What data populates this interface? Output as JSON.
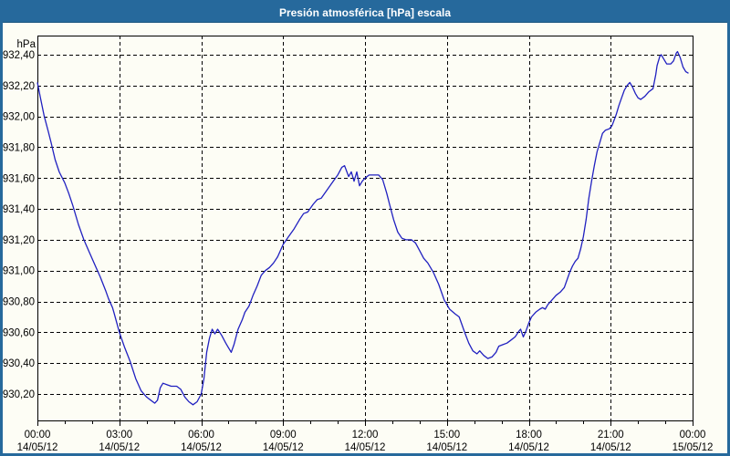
{
  "window": {
    "title": "Presión atmosférica [hPa] escala"
  },
  "colors": {
    "frame_blue": "#26699c",
    "title_text": "#ffffff",
    "plot_background": "#fdfdf5",
    "line_color": "#2020c0",
    "grid_color": "#000000",
    "label_color": "#000000"
  },
  "chart_data": {
    "type": "line",
    "title": "Presión atmosférica [hPa] escala",
    "y_unit_label": "hPa",
    "grid": "dashed",
    "legend": "none",
    "xlim_hours": [
      0,
      24
    ],
    "ylim": [
      930.03,
      932.52
    ],
    "y_ticks": [
      930.2,
      930.4,
      930.6,
      930.8,
      931.0,
      931.2,
      931.4,
      931.6,
      931.8,
      932.0,
      932.2,
      932.4
    ],
    "y_tick_decimal_separator": ",",
    "x_ticks": [
      {
        "t": 0,
        "time": "00:00",
        "date": "14/05/12"
      },
      {
        "t": 3,
        "time": "03:00",
        "date": "14/05/12"
      },
      {
        "t": 6,
        "time": "06:00",
        "date": "14/05/12"
      },
      {
        "t": 9,
        "time": "09:00",
        "date": "14/05/12"
      },
      {
        "t": 12,
        "time": "12:00",
        "date": "14/05/12"
      },
      {
        "t": 15,
        "time": "15:00",
        "date": "14/05/12"
      },
      {
        "t": 18,
        "time": "18:00",
        "date": "14/05/12"
      },
      {
        "t": 21,
        "time": "21:00",
        "date": "14/05/12"
      },
      {
        "t": 24,
        "time": "00:00",
        "date": "15/05/12"
      }
    ],
    "minor_tick_every_hours": 1,
    "series": [
      {
        "color": "#2020c0",
        "points_t_hours_value_hpa": [
          [
            0.0,
            932.22
          ],
          [
            0.1,
            932.13
          ],
          [
            0.25,
            932.0
          ],
          [
            0.4,
            931.9
          ],
          [
            0.5,
            931.83
          ],
          [
            0.65,
            931.72
          ],
          [
            0.8,
            931.64
          ],
          [
            1.0,
            931.57
          ],
          [
            1.15,
            931.5
          ],
          [
            1.3,
            931.42
          ],
          [
            1.5,
            931.3
          ],
          [
            1.7,
            931.2
          ],
          [
            1.9,
            931.12
          ],
          [
            2.1,
            931.04
          ],
          [
            2.3,
            930.96
          ],
          [
            2.5,
            930.87
          ],
          [
            2.6,
            930.82
          ],
          [
            2.75,
            930.76
          ],
          [
            2.8,
            930.73
          ],
          [
            3.0,
            930.6
          ],
          [
            3.2,
            930.5
          ],
          [
            3.4,
            930.41
          ],
          [
            3.6,
            930.3
          ],
          [
            3.8,
            930.22
          ],
          [
            4.0,
            930.18
          ],
          [
            4.15,
            930.16
          ],
          [
            4.3,
            930.14
          ],
          [
            4.4,
            930.16
          ],
          [
            4.5,
            930.24
          ],
          [
            4.6,
            930.27
          ],
          [
            4.75,
            930.26
          ],
          [
            4.9,
            930.25
          ],
          [
            5.1,
            930.25
          ],
          [
            5.25,
            930.23
          ],
          [
            5.4,
            930.18
          ],
          [
            5.55,
            930.15
          ],
          [
            5.7,
            930.13
          ],
          [
            5.85,
            930.15
          ],
          [
            6.0,
            930.2
          ],
          [
            6.1,
            930.3
          ],
          [
            6.2,
            930.47
          ],
          [
            6.3,
            930.56
          ],
          [
            6.4,
            930.62
          ],
          [
            6.5,
            930.59
          ],
          [
            6.6,
            930.62
          ],
          [
            6.75,
            930.58
          ],
          [
            6.9,
            930.53
          ],
          [
            7.0,
            930.5
          ],
          [
            7.1,
            930.47
          ],
          [
            7.2,
            930.52
          ],
          [
            7.35,
            930.62
          ],
          [
            7.5,
            930.68
          ],
          [
            7.6,
            930.73
          ],
          [
            7.75,
            930.77
          ],
          [
            7.9,
            930.84
          ],
          [
            8.05,
            930.9
          ],
          [
            8.2,
            930.97
          ],
          [
            8.35,
            931.0
          ],
          [
            8.5,
            931.02
          ],
          [
            8.65,
            931.05
          ],
          [
            8.8,
            931.09
          ],
          [
            9.0,
            931.17
          ],
          [
            9.2,
            931.22
          ],
          [
            9.4,
            931.27
          ],
          [
            9.6,
            931.33
          ],
          [
            9.75,
            931.37
          ],
          [
            9.9,
            931.38
          ],
          [
            10.1,
            931.43
          ],
          [
            10.25,
            931.46
          ],
          [
            10.4,
            931.47
          ],
          [
            10.6,
            931.52
          ],
          [
            10.8,
            931.57
          ],
          [
            11.0,
            931.62
          ],
          [
            11.15,
            931.67
          ],
          [
            11.25,
            931.68
          ],
          [
            11.4,
            931.61
          ],
          [
            11.5,
            931.64
          ],
          [
            11.6,
            931.58
          ],
          [
            11.7,
            931.64
          ],
          [
            11.8,
            931.55
          ],
          [
            11.9,
            931.58
          ],
          [
            12.0,
            931.6
          ],
          [
            12.15,
            931.62
          ],
          [
            12.35,
            931.62
          ],
          [
            12.5,
            931.62
          ],
          [
            12.65,
            931.59
          ],
          [
            12.8,
            931.5
          ],
          [
            12.9,
            931.43
          ],
          [
            13.05,
            931.33
          ],
          [
            13.2,
            931.25
          ],
          [
            13.35,
            931.21
          ],
          [
            13.5,
            931.2
          ],
          [
            13.7,
            931.2
          ],
          [
            13.85,
            931.18
          ],
          [
            14.0,
            931.13
          ],
          [
            14.15,
            931.08
          ],
          [
            14.3,
            931.05
          ],
          [
            14.5,
            930.99
          ],
          [
            14.7,
            930.91
          ],
          [
            14.9,
            930.81
          ],
          [
            15.1,
            930.75
          ],
          [
            15.3,
            930.72
          ],
          [
            15.45,
            930.7
          ],
          [
            15.55,
            930.65
          ],
          [
            15.65,
            930.6
          ],
          [
            15.8,
            930.53
          ],
          [
            15.95,
            930.48
          ],
          [
            16.1,
            930.46
          ],
          [
            16.2,
            930.48
          ],
          [
            16.35,
            930.45
          ],
          [
            16.5,
            930.43
          ],
          [
            16.65,
            930.44
          ],
          [
            16.8,
            930.47
          ],
          [
            16.9,
            930.51
          ],
          [
            17.05,
            930.52
          ],
          [
            17.2,
            930.53
          ],
          [
            17.35,
            930.55
          ],
          [
            17.5,
            930.57
          ],
          [
            17.65,
            930.61
          ],
          [
            17.7,
            930.62
          ],
          [
            17.8,
            930.57
          ],
          [
            17.9,
            930.61
          ],
          [
            18.0,
            930.66
          ],
          [
            18.1,
            930.7
          ],
          [
            18.25,
            930.73
          ],
          [
            18.4,
            930.75
          ],
          [
            18.5,
            930.76
          ],
          [
            18.6,
            930.75
          ],
          [
            18.7,
            930.78
          ],
          [
            18.85,
            930.81
          ],
          [
            19.0,
            930.84
          ],
          [
            19.15,
            930.86
          ],
          [
            19.3,
            930.89
          ],
          [
            19.4,
            930.94
          ],
          [
            19.5,
            930.99
          ],
          [
            19.6,
            931.03
          ],
          [
            19.7,
            931.06
          ],
          [
            19.8,
            931.08
          ],
          [
            19.9,
            931.14
          ],
          [
            20.0,
            931.22
          ],
          [
            20.1,
            931.33
          ],
          [
            20.2,
            931.47
          ],
          [
            20.3,
            931.58
          ],
          [
            20.4,
            931.68
          ],
          [
            20.5,
            931.77
          ],
          [
            20.6,
            931.83
          ],
          [
            20.7,
            931.89
          ],
          [
            20.8,
            931.91
          ],
          [
            20.95,
            931.92
          ],
          [
            21.05,
            931.94
          ],
          [
            21.2,
            932.01
          ],
          [
            21.3,
            932.07
          ],
          [
            21.4,
            932.12
          ],
          [
            21.5,
            932.17
          ],
          [
            21.6,
            932.2
          ],
          [
            21.7,
            932.22
          ],
          [
            21.8,
            932.19
          ],
          [
            21.9,
            932.15
          ],
          [
            22.0,
            932.12
          ],
          [
            22.1,
            932.11
          ],
          [
            22.25,
            932.13
          ],
          [
            22.4,
            932.16
          ],
          [
            22.55,
            932.18
          ],
          [
            22.65,
            932.27
          ],
          [
            22.7,
            932.33
          ],
          [
            22.8,
            932.39
          ],
          [
            22.85,
            932.4
          ],
          [
            22.95,
            932.37
          ],
          [
            23.05,
            932.34
          ],
          [
            23.2,
            932.34
          ],
          [
            23.3,
            932.36
          ],
          [
            23.4,
            932.41
          ],
          [
            23.45,
            932.42
          ],
          [
            23.55,
            932.38
          ],
          [
            23.65,
            932.32
          ],
          [
            23.75,
            932.29
          ],
          [
            23.85,
            932.28
          ]
        ]
      }
    ]
  }
}
